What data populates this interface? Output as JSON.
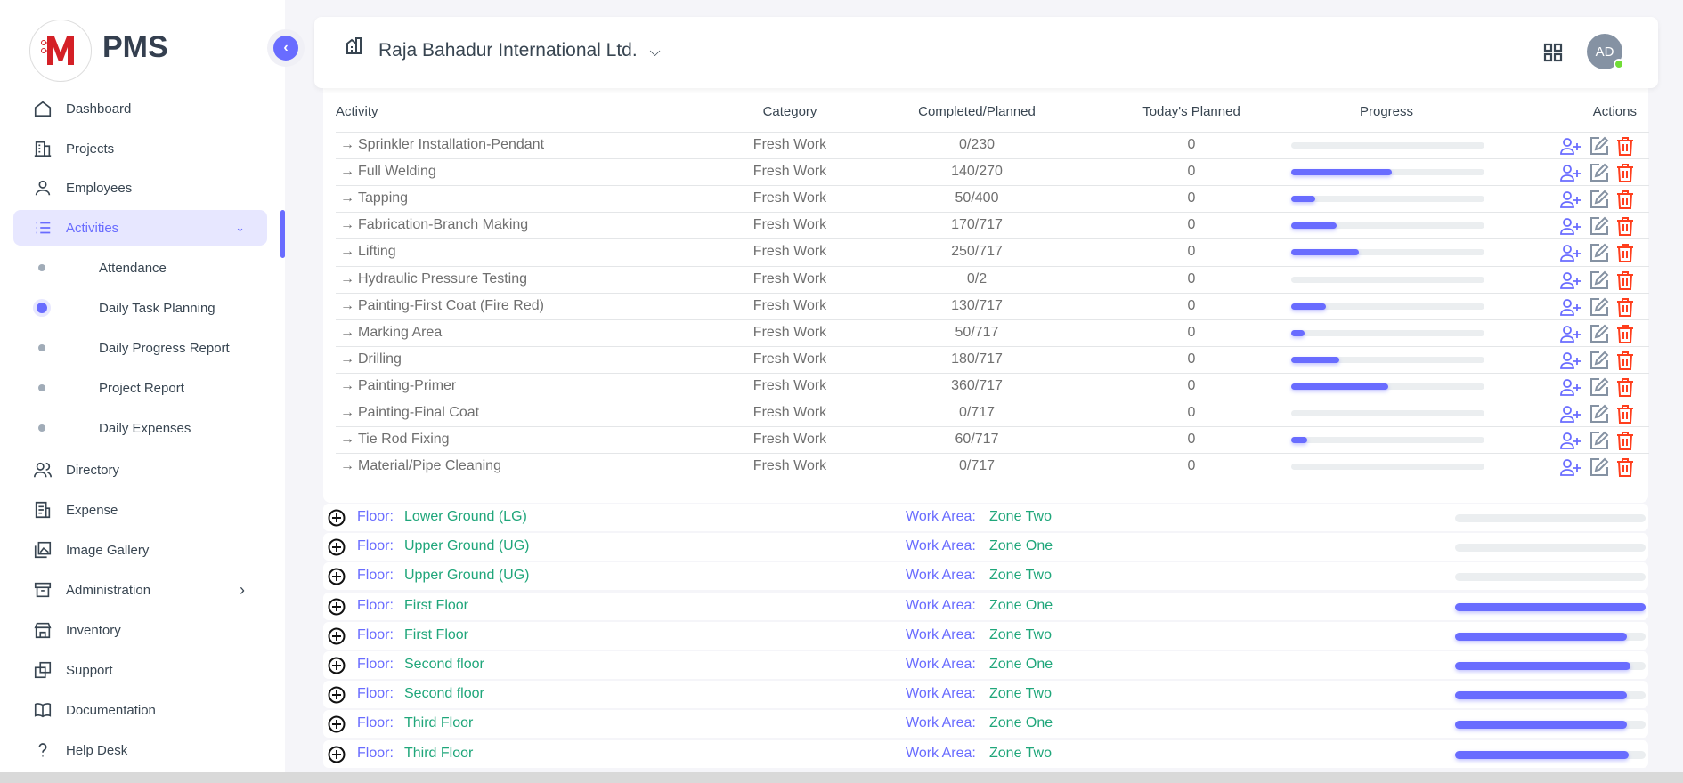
{
  "brand": {
    "name": "PMS"
  },
  "sidebar": {
    "items": [
      {
        "label": "Dashboard",
        "icon": "home-icon"
      },
      {
        "label": "Projects",
        "icon": "building-icon"
      },
      {
        "label": "Employees",
        "icon": "user-icon"
      },
      {
        "label": "Activities",
        "icon": "list-icon",
        "active": true,
        "expanded": true
      },
      {
        "label": "Directory",
        "icon": "users-icon"
      },
      {
        "label": "Expense",
        "icon": "receipt-icon"
      },
      {
        "label": "Image Gallery",
        "icon": "gallery-icon"
      },
      {
        "label": "Administration",
        "icon": "archive-icon",
        "has_children": true
      },
      {
        "label": "Inventory",
        "icon": "store-icon"
      },
      {
        "label": "Support",
        "icon": "copy-icon"
      },
      {
        "label": "Documentation",
        "icon": "book-icon"
      },
      {
        "label": "Help Desk",
        "icon": "question-icon"
      }
    ],
    "submenu": [
      {
        "label": "Attendance"
      },
      {
        "label": "Daily Task Planning",
        "active": true
      },
      {
        "label": "Daily Progress Report"
      },
      {
        "label": "Project Report"
      },
      {
        "label": "Daily Expenses"
      }
    ]
  },
  "header": {
    "project": "Raja Bahadur International Ltd.",
    "avatar": "AD",
    "status_color": "#71dd37"
  },
  "table": {
    "columns": [
      "Activity",
      "Category",
      "Completed/Planned",
      "Today's Planned",
      "Progress",
      "Actions"
    ],
    "rows": [
      {
        "activity": "Sprinkler Installation-Pendant",
        "category": "Fresh Work",
        "completed": 0,
        "planned": 230,
        "cp": "0/230",
        "today": "0"
      },
      {
        "activity": "Full Welding",
        "category": "Fresh Work",
        "completed": 140,
        "planned": 270,
        "cp": "140/270",
        "today": "0"
      },
      {
        "activity": "Tapping",
        "category": "Fresh Work",
        "completed": 50,
        "planned": 400,
        "cp": "50/400",
        "today": "0"
      },
      {
        "activity": "Fabrication-Branch Making",
        "category": "Fresh Work",
        "completed": 170,
        "planned": 717,
        "cp": "170/717",
        "today": "0"
      },
      {
        "activity": "Lifting",
        "category": "Fresh Work",
        "completed": 250,
        "planned": 717,
        "cp": "250/717",
        "today": "0"
      },
      {
        "activity": "Hydraulic Pressure Testing",
        "category": "Fresh Work",
        "completed": 0,
        "planned": 2,
        "cp": "0/2",
        "today": "0"
      },
      {
        "activity": "Painting-First Coat (Fire Red)",
        "category": "Fresh Work",
        "completed": 130,
        "planned": 717,
        "cp": "130/717",
        "today": "0"
      },
      {
        "activity": "Marking Area",
        "category": "Fresh Work",
        "completed": 50,
        "planned": 717,
        "cp": "50/717",
        "today": "0"
      },
      {
        "activity": "Drilling",
        "category": "Fresh Work",
        "completed": 180,
        "planned": 717,
        "cp": "180/717",
        "today": "0"
      },
      {
        "activity": "Painting-Primer",
        "category": "Fresh Work",
        "completed": 360,
        "planned": 717,
        "cp": "360/717",
        "today": "0"
      },
      {
        "activity": "Painting-Final Coat",
        "category": "Fresh Work",
        "completed": 0,
        "planned": 717,
        "cp": "0/717",
        "today": "0"
      },
      {
        "activity": "Tie Rod Fixing",
        "category": "Fresh Work",
        "completed": 60,
        "planned": 717,
        "cp": "60/717",
        "today": "0"
      },
      {
        "activity": "Material/Pipe Cleaning",
        "category": "Fresh Work",
        "completed": 0,
        "planned": 717,
        "cp": "0/717",
        "today": "0"
      }
    ]
  },
  "floors": {
    "floor_label": "Floor:",
    "area_label": "Work Area:",
    "rows": [
      {
        "floor": "Lower Ground (LG)",
        "area": "Zone Two",
        "progress": 0
      },
      {
        "floor": "Upper Ground (UG)",
        "area": "Zone One",
        "progress": 0
      },
      {
        "floor": "Upper Ground (UG)",
        "area": "Zone Two",
        "progress": 0
      },
      {
        "floor": "First Floor",
        "area": "Zone One",
        "progress": 100
      },
      {
        "floor": "First Floor",
        "area": "Zone Two",
        "progress": 90
      },
      {
        "floor": "Second floor",
        "area": "Zone One",
        "progress": 92
      },
      {
        "floor": "Second floor",
        "area": "Zone Two",
        "progress": 90
      },
      {
        "floor": "Third Floor",
        "area": "Zone One",
        "progress": 90
      },
      {
        "floor": "Third Floor",
        "area": "Zone Two",
        "progress": 91
      }
    ]
  },
  "colors": {
    "primary": "#696cff",
    "success": "#1fa67a",
    "danger": "#ff3e1d"
  }
}
